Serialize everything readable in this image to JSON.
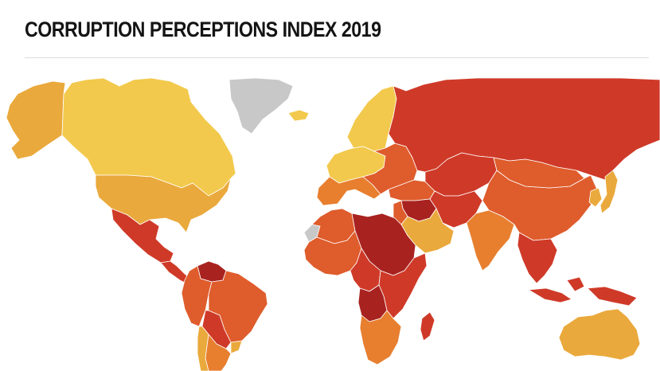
{
  "header": {
    "title": "CORRUPTION PERCEPTIONS INDEX 2019"
  },
  "map": {
    "colors": {
      "very_clean": "#f2c94c",
      "clean": "#eaa93c",
      "medium": "#e77f2f",
      "corrupt": "#df5c2c",
      "very_corrupt": "#cf3a28",
      "highly_corrupt": "#a82320",
      "no_data": "#c8c8c8",
      "border": "#ffffff",
      "background": "#ffffff"
    },
    "regions": [
      {
        "name": "alaska",
        "band": "clean"
      },
      {
        "name": "canada",
        "band": "very_clean"
      },
      {
        "name": "usa",
        "band": "clean"
      },
      {
        "name": "mexico",
        "band": "very_corrupt"
      },
      {
        "name": "central-america",
        "band": "very_corrupt"
      },
      {
        "name": "venezuela",
        "band": "highly_corrupt"
      },
      {
        "name": "colombia-peru",
        "band": "corrupt"
      },
      {
        "name": "brazil",
        "band": "corrupt"
      },
      {
        "name": "bolivia-paraguay",
        "band": "very_corrupt"
      },
      {
        "name": "argentina",
        "band": "medium"
      },
      {
        "name": "chile-uruguay",
        "band": "clean"
      },
      {
        "name": "greenland",
        "band": "no_data"
      },
      {
        "name": "iceland",
        "band": "very_clean"
      },
      {
        "name": "scandinavia",
        "band": "very_clean"
      },
      {
        "name": "western-europe",
        "band": "very_clean"
      },
      {
        "name": "southern-europe",
        "band": "medium"
      },
      {
        "name": "eastern-europe",
        "band": "corrupt"
      },
      {
        "name": "russia",
        "band": "very_corrupt"
      },
      {
        "name": "turkey-caucasus",
        "band": "corrupt"
      },
      {
        "name": "central-asia",
        "band": "very_corrupt"
      },
      {
        "name": "middle-east",
        "band": "corrupt"
      },
      {
        "name": "arabian-peninsula",
        "band": "clean"
      },
      {
        "name": "iraq-syria",
        "band": "highly_corrupt"
      },
      {
        "name": "iran-afghanistan",
        "band": "very_corrupt"
      },
      {
        "name": "north-africa",
        "band": "corrupt"
      },
      {
        "name": "libya-sudan",
        "band": "highly_corrupt"
      },
      {
        "name": "western-sahara",
        "band": "no_data"
      },
      {
        "name": "west-africa",
        "band": "corrupt"
      },
      {
        "name": "central-africa",
        "band": "very_corrupt"
      },
      {
        "name": "congo-angola",
        "band": "highly_corrupt"
      },
      {
        "name": "east-africa",
        "band": "very_corrupt"
      },
      {
        "name": "southern-africa",
        "band": "medium"
      },
      {
        "name": "madagascar",
        "band": "very_corrupt"
      },
      {
        "name": "india",
        "band": "medium"
      },
      {
        "name": "china",
        "band": "corrupt"
      },
      {
        "name": "mongolia",
        "band": "corrupt"
      },
      {
        "name": "korea-japan",
        "band": "clean"
      },
      {
        "name": "southeast-asia",
        "band": "very_corrupt"
      },
      {
        "name": "indonesia",
        "band": "very_corrupt"
      },
      {
        "name": "australia",
        "band": "clean"
      }
    ]
  }
}
